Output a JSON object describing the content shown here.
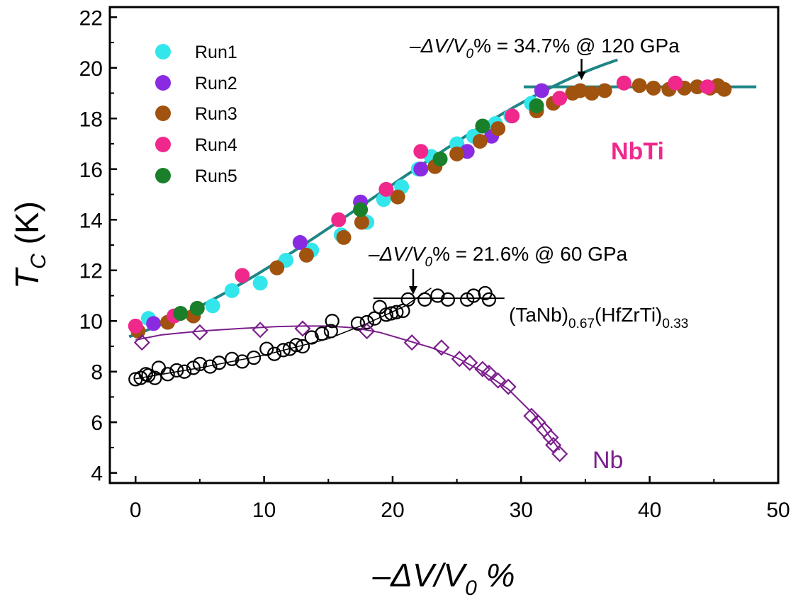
{
  "chart_data": {
    "type": "scatter",
    "xlabel": {
      "prefix": "–ΔV/V",
      "sub": "0",
      "suffix": " %"
    },
    "ylabel": {
      "main": "T",
      "sub": "C",
      "suffix": " (K)"
    },
    "xlim": [
      -2,
      50
    ],
    "ylim": [
      3.6,
      22.4
    ],
    "xticks": [
      0,
      10,
      20,
      30,
      40,
      50
    ],
    "yticks": [
      4,
      6,
      8,
      10,
      12,
      14,
      16,
      18,
      20,
      22
    ],
    "colors": {
      "Run1": "#33e6ec",
      "Run2": "#8a2be2",
      "Run3": "#a0530f",
      "Run4": "#f0288c",
      "Run5": "#1a7f2a",
      "fit_nbti": "#1f8585",
      "nb": "#7b1f8c",
      "hea": "#000000"
    },
    "legend": [
      "Run1",
      "Run2",
      "Run3",
      "Run4",
      "Run5"
    ],
    "legend_position": "top-left",
    "series": [
      {
        "name": "Run1",
        "marker": "filled-circle",
        "points": [
          [
            1,
            10.1
          ],
          [
            3,
            10.2
          ],
          [
            6,
            10.6
          ],
          [
            7.5,
            11.2
          ],
          [
            9.7,
            11.5
          ],
          [
            11.7,
            12.4
          ],
          [
            13.7,
            12.8
          ],
          [
            16,
            13.4
          ],
          [
            18,
            13.9
          ],
          [
            19.3,
            14.8
          ],
          [
            20.7,
            15.3
          ],
          [
            22,
            16
          ],
          [
            23,
            16.5
          ],
          [
            25,
            17
          ],
          [
            26.3,
            17.3
          ],
          [
            28,
            17.8
          ],
          [
            29.2,
            18.1
          ],
          [
            30.8,
            18.6
          ]
        ]
      },
      {
        "name": "Run2",
        "marker": "filled-circle",
        "points": [
          [
            1.4,
            9.9
          ],
          [
            12.8,
            13.1
          ],
          [
            17.5,
            14.7
          ],
          [
            22.2,
            16
          ],
          [
            25.8,
            16.7
          ],
          [
            27.7,
            17.3
          ],
          [
            31.6,
            19.1
          ]
        ]
      },
      {
        "name": "Run3",
        "marker": "filled-circle",
        "points": [
          [
            0.2,
            9.6
          ],
          [
            2.5,
            9.95
          ],
          [
            4.5,
            10.2
          ],
          [
            11,
            12.1
          ],
          [
            13.3,
            12.6
          ],
          [
            16.2,
            13.3
          ],
          [
            17.6,
            13.9
          ],
          [
            20.4,
            14.9
          ],
          [
            23.3,
            16.1
          ],
          [
            25,
            16.6
          ],
          [
            26.8,
            17.1
          ],
          [
            28.2,
            17.6
          ],
          [
            31.2,
            18.3
          ],
          [
            32.5,
            18.6
          ],
          [
            34,
            19
          ],
          [
            34.6,
            19.1
          ],
          [
            35.5,
            19
          ],
          [
            36.5,
            19.1
          ],
          [
            38,
            19.4
          ],
          [
            39.2,
            19.3
          ],
          [
            40.3,
            19.2
          ],
          [
            41.5,
            19.15
          ],
          [
            42.7,
            19.2
          ],
          [
            43.7,
            19.25
          ],
          [
            44.7,
            19.2
          ],
          [
            45.3,
            19.3
          ],
          [
            45.8,
            19.15
          ]
        ]
      },
      {
        "name": "Run4",
        "marker": "filled-circle",
        "points": [
          [
            0,
            9.8
          ],
          [
            3,
            10.2
          ],
          [
            8.3,
            11.8
          ],
          [
            15.8,
            14
          ],
          [
            19.5,
            15.2
          ],
          [
            22.2,
            16.7
          ],
          [
            29.3,
            18.1
          ],
          [
            33,
            18.8
          ],
          [
            38,
            19.4
          ],
          [
            42,
            19.4
          ],
          [
            44.5,
            19.25
          ]
        ]
      },
      {
        "name": "Run5",
        "marker": "filled-circle",
        "points": [
          [
            3.5,
            10.3
          ],
          [
            4.8,
            10.5
          ],
          [
            17.5,
            14.4
          ],
          [
            23.7,
            16.4
          ],
          [
            27,
            17.7
          ],
          [
            31.2,
            18.5
          ]
        ]
      },
      {
        "name": "",
        "marker": "open-circle",
        "points": [
          [
            0,
            7.7
          ],
          [
            0.4,
            7.75
          ],
          [
            0.8,
            7.9
          ],
          [
            1,
            7.85
          ],
          [
            1.5,
            7.75
          ],
          [
            1.8,
            8.15
          ],
          [
            2.5,
            7.9
          ],
          [
            3.2,
            8.05
          ],
          [
            3.8,
            8
          ],
          [
            4.5,
            8.15
          ],
          [
            5,
            8.3
          ],
          [
            5.8,
            8.2
          ],
          [
            6.5,
            8.35
          ],
          [
            7.5,
            8.5
          ],
          [
            8.3,
            8.4
          ],
          [
            9.2,
            8.55
          ],
          [
            10.2,
            8.9
          ],
          [
            10.8,
            8.7
          ],
          [
            11.5,
            8.85
          ],
          [
            12,
            8.9
          ],
          [
            12.5,
            9.05
          ],
          [
            13,
            9
          ],
          [
            13.7,
            9.35
          ],
          [
            14.5,
            9.5
          ],
          [
            15.2,
            9.6
          ],
          [
            15.3,
            10
          ],
          [
            17.3,
            9.9
          ],
          [
            18,
            9.95
          ],
          [
            18.6,
            10.1
          ],
          [
            19,
            10.55
          ],
          [
            19.5,
            10.25
          ],
          [
            19.9,
            10.3
          ],
          [
            20.3,
            10.35
          ],
          [
            20.8,
            10.4
          ],
          [
            21.2,
            10.85
          ],
          [
            22.5,
            10.85
          ],
          [
            23.5,
            11
          ],
          [
            24.3,
            10.85
          ],
          [
            25.8,
            10.85
          ],
          [
            26.3,
            11
          ],
          [
            27.2,
            11.1
          ],
          [
            27.5,
            10.85
          ]
        ]
      },
      {
        "name": "",
        "marker": "open-diamond",
        "points": [
          [
            0.5,
            9.15
          ],
          [
            5,
            9.55
          ],
          [
            9.7,
            9.65
          ],
          [
            13,
            9.7
          ],
          [
            18,
            9.6
          ],
          [
            21.5,
            9.15
          ],
          [
            23.8,
            8.95
          ],
          [
            25.2,
            8.5
          ],
          [
            26,
            8.35
          ],
          [
            27,
            8.1
          ],
          [
            27.5,
            7.95
          ],
          [
            28.2,
            7.65
          ],
          [
            29,
            7.4
          ],
          [
            30.8,
            6.25
          ],
          [
            31.3,
            6
          ],
          [
            31.8,
            5.7
          ],
          [
            32.3,
            5.4
          ],
          [
            32.5,
            5.1
          ],
          [
            33,
            4.75
          ]
        ]
      }
    ],
    "fits": {
      "nbti": {
        "x": [
          -0.5,
          37.5
        ],
        "poly": [
          9.47,
          0.18,
          0.0091,
          -0.000165
        ]
      },
      "nbti_plateau": {
        "x": [
          30.2,
          48.3
        ],
        "y": 19.25
      },
      "nb": [
        [
          0,
          9.25
        ],
        [
          2,
          9.45
        ],
        [
          5,
          9.6
        ],
        [
          8,
          9.7
        ],
        [
          11,
          9.78
        ],
        [
          13,
          9.8
        ],
        [
          15,
          9.8
        ],
        [
          17,
          9.73
        ],
        [
          19,
          9.55
        ],
        [
          21,
          9.25
        ],
        [
          23,
          8.95
        ],
        [
          25,
          8.55
        ],
        [
          27,
          8
        ],
        [
          29,
          7.3
        ],
        [
          31,
          6.3
        ],
        [
          33,
          4.9
        ]
      ],
      "hea_low": [
        [
          0,
          7.72
        ],
        [
          5,
          8.15
        ],
        [
          10,
          8.65
        ],
        [
          15,
          9.3
        ],
        [
          18,
          9.9
        ],
        [
          21,
          10.6
        ],
        [
          23,
          11.3
        ]
      ],
      "hea_plateau": {
        "x": [
          18.5,
          28.7
        ],
        "y": 10.9
      }
    },
    "annotations": {
      "nbti_transition": {
        "text": "–ΔV/V",
        "sub": "0",
        "rest": "% = 34.7% @ 120 GPa",
        "x": 34.7
      },
      "hea_transition": {
        "text": "–ΔV/V",
        "sub": "0",
        "rest": "% = 21.6% @ 60 GPa",
        "x": 21.6
      },
      "hea_label": {
        "main": "(TaNb)",
        "sub1": "0.67",
        "mid": "(HfZrTi)",
        "sub2": "0.33"
      },
      "nbti_label": "NbTi",
      "nb_label": "Nb"
    }
  }
}
